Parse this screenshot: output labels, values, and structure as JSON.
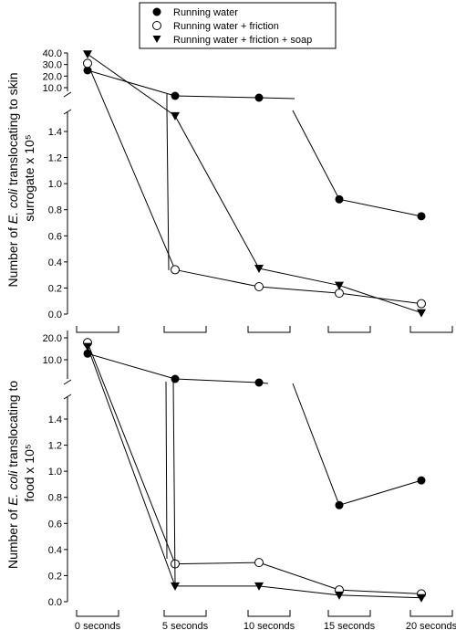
{
  "legend": {
    "entries": [
      {
        "label": "Running water",
        "marker": "filled-circle"
      },
      {
        "label": "Running water + friction",
        "marker": "open-circle"
      },
      {
        "label": "Running water + friction + soap",
        "marker": "filled-triangle-down"
      }
    ]
  },
  "chart_data": [
    {
      "type": "line",
      "ylabel_lines": [
        "Number of E. coli translocating to skin",
        "surrogate x 10⁵"
      ],
      "x_categories": [
        "0 seconds",
        "5 seconds",
        "10 seconds",
        "15 seconds",
        "20 seconds"
      ],
      "y_axis": {
        "broken": true,
        "lower_range": [
          0,
          1.5
        ],
        "lower_ticks": [
          "0.0",
          "0.2",
          "0.4",
          "0.6",
          "0.8",
          "1.0",
          "1.2",
          "1.4"
        ],
        "upper_ticks": [
          "10.0",
          "20.0",
          "30.0",
          "40.0"
        ]
      },
      "series": [
        {
          "name": "Running water",
          "marker": "filled-circle",
          "values": [
            25.0,
            0.0,
            0.0,
            0.88,
            0.75
          ]
        },
        {
          "name": "Running water + friction",
          "marker": "open-circle",
          "values": [
            31.0,
            0.34,
            0.21,
            0.16,
            0.08
          ]
        },
        {
          "name": "Running water + friction + soap",
          "marker": "filled-triangle-down",
          "values": [
            39.0,
            1.52,
            0.35,
            0.22,
            0.01
          ]
        }
      ]
    },
    {
      "type": "line",
      "ylabel_lines": [
        "Number of E. coli translocating to",
        "food x 10⁵"
      ],
      "x_categories": [
        "0 seconds",
        "5 seconds",
        "10 seconds",
        "15 seconds",
        "20 seconds"
      ],
      "y_axis": {
        "broken": true,
        "lower_range": [
          0,
          1.5
        ],
        "lower_ticks": [
          "0.0",
          "0.2",
          "0.4",
          "0.6",
          "0.8",
          "1.0",
          "1.2",
          "1.4"
        ],
        "upper_ticks": [
          "10.0",
          "20.0"
        ]
      },
      "series": [
        {
          "name": "Running water",
          "marker": "filled-circle",
          "values": [
            12.8,
            0.0,
            0.0,
            0.74,
            0.93
          ]
        },
        {
          "name": "Running water + friction",
          "marker": "open-circle",
          "values": [
            17.8,
            0.29,
            0.3,
            0.09,
            0.06
          ]
        },
        {
          "name": "Running water + friction + soap",
          "marker": "filled-triangle-down",
          "values": [
            16.0,
            0.12,
            0.12,
            0.05,
            0.03
          ]
        }
      ]
    }
  ]
}
